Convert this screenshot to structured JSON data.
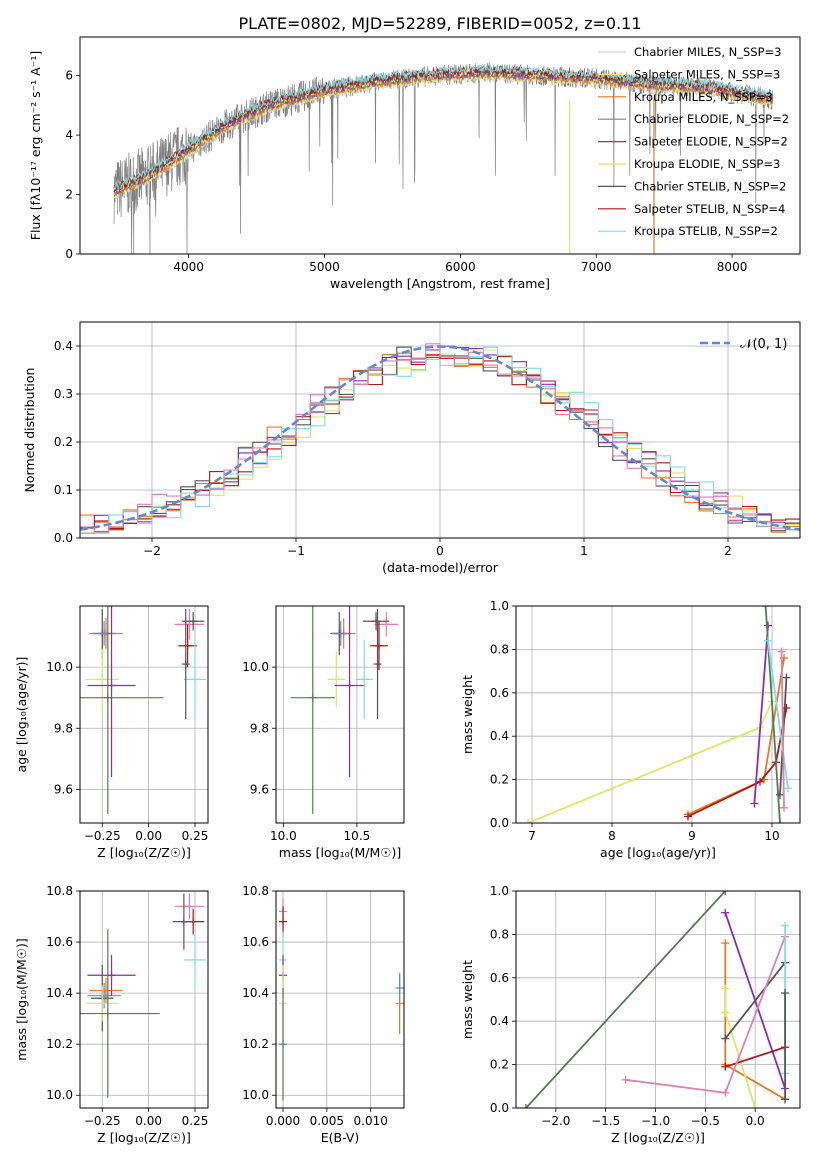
{
  "figure_title": "PLATE=0802, MJD=52289, FIBERID=0052, z=0.11",
  "chart_data": [
    {
      "id": "spectrum",
      "type": "line",
      "xlabel": "wavelength [Angstrom, rest frame]",
      "ylabel": "Flux [fλ10⁻¹⁷ erg cm⁻² s⁻¹ A⁻¹]",
      "xlim": [
        3200,
        8500
      ],
      "ylim": [
        0,
        7.3
      ],
      "xticks": [
        4000,
        5000,
        6000,
        7000,
        8000
      ],
      "yticks": [
        0,
        2,
        4,
        6
      ],
      "grid": false,
      "legend": "top-right",
      "observed_envelope": {
        "x": [
          3450,
          3700,
          4000,
          4300,
          4600,
          5000,
          5400,
          5800,
          6200,
          6600,
          7000,
          7400,
          7800,
          8300
        ],
        "y": [
          2.1,
          2.6,
          3.5,
          4.4,
          5.0,
          5.5,
          5.8,
          6.0,
          6.1,
          6.0,
          5.9,
          5.7,
          5.6,
          5.2
        ]
      },
      "series": [
        {
          "name": "Chabrier MILES, N_SSP=3",
          "color": "#d1d1d1"
        },
        {
          "name": "Salpeter MILES, N_SSP=3",
          "color": "#f1ee6a"
        },
        {
          "name": "Kroupa MILES, N_SSP=3",
          "color": "#e6791f"
        },
        {
          "name": "Chabrier ELODIE, N_SSP=2",
          "color": "#808080"
        },
        {
          "name": "Salpeter ELODIE, N_SSP=2",
          "color": "#8e2ab4"
        },
        {
          "name": "Kroupa ELODIE, N_SSP=3",
          "color": "#d9e865"
        },
        {
          "name": "Chabrier STELIB, N_SSP=2",
          "color": "#555555"
        },
        {
          "name": "Salpeter STELIB, N_SSP=4",
          "color": "#b01616"
        },
        {
          "name": "Kroupa STELIB, N_SSP=2",
          "color": "#7fdde3"
        }
      ]
    },
    {
      "id": "residuals",
      "type": "line",
      "xlabel": "(data-model)/error",
      "ylabel": "Normed distribution",
      "xlim": [
        -2.5,
        2.5
      ],
      "ylim": [
        0,
        0.45
      ],
      "xticks": [
        -2,
        -1,
        0,
        1,
        2
      ],
      "yticks": [
        0.0,
        0.1,
        0.2,
        0.3,
        0.4
      ],
      "grid": true,
      "legend": "top-right",
      "reference": {
        "name": "𝒩(0, 1)",
        "color": "#5b8ad8",
        "mu": 0,
        "sigma": 1
      },
      "hist_colors": [
        "#e6791f",
        "#8e2ab4",
        "#d9e865",
        "#555555",
        "#b01616",
        "#7fdde3",
        "#e07fb0"
      ]
    },
    {
      "id": "age-vs-Z",
      "type": "scatter",
      "xlabel": "Z [log₁₀(Z/Z☉)]",
      "ylabel": "age  [log₁₀(age/yr)]",
      "xlim": [
        -0.37,
        0.32
      ],
      "ylim": [
        9.49,
        10.2
      ],
      "xticks": [
        -0.25,
        0.0,
        0.25
      ],
      "xticklabels": [
        "−0.25",
        "0.00",
        "0.25"
      ],
      "yticks": [
        9.6,
        9.8,
        10.0
      ],
      "yticklabels": [
        "9.6",
        "9.8",
        "10.0"
      ],
      "grid": true,
      "points": [
        {
          "x": -0.23,
          "y": 10.11,
          "xerr": 0.09,
          "yerr": 0.05,
          "color": "#e6791f"
        },
        {
          "x": -0.25,
          "y": 10.11,
          "xerr": 0.05,
          "yerr": 0.08,
          "color": "#555555"
        },
        {
          "x": -0.24,
          "y": 10.11,
          "xerr": 0.06,
          "yerr": 0.04,
          "color": "#5b8ad8"
        },
        {
          "x": -0.25,
          "y": 9.96,
          "xerr": 0.09,
          "yerr": 0.1,
          "color": "#d9e865"
        },
        {
          "x": -0.2,
          "y": 9.94,
          "xerr": 0.13,
          "yerr": 0.3,
          "color": "#8e2ab4"
        },
        {
          "x": -0.22,
          "y": 9.9,
          "xerr": 0.3,
          "yerr": 0.38,
          "color": "#4f7f4f"
        },
        {
          "x": 0.22,
          "y": 10.14,
          "xerr": 0.08,
          "yerr": 0.05,
          "color": "#e07fb0"
        },
        {
          "x": 0.24,
          "y": 10.15,
          "xerr": 0.06,
          "yerr": 0.03,
          "color": "#555555"
        },
        {
          "x": 0.21,
          "y": 10.07,
          "xerr": 0.05,
          "yerr": 0.07,
          "color": "#b01616"
        },
        {
          "x": 0.25,
          "y": 9.96,
          "xerr": 0.06,
          "yerr": 0.13,
          "color": "#7fdde3"
        },
        {
          "x": 0.2,
          "y": 10.01,
          "xerr": 0.01,
          "yerr": 0.18,
          "color": "#555555"
        }
      ]
    },
    {
      "id": "age-vs-mass",
      "type": "scatter",
      "xlabel": "mass [log₁₀(M/M☉)]",
      "ylabel": "",
      "xlim": [
        9.95,
        10.82
      ],
      "ylim": [
        9.49,
        10.2
      ],
      "xticks": [
        10.0,
        10.5
      ],
      "xticklabels": [
        "10.0",
        "10.5"
      ],
      "yticks": [
        9.6,
        9.8,
        10.0
      ],
      "yticklabels": [
        "9.6",
        "9.8",
        "10.0"
      ],
      "grid": true,
      "points": [
        {
          "x": 10.41,
          "y": 10.11,
          "xerr": 0.08,
          "yerr": 0.05,
          "color": "#e6791f"
        },
        {
          "x": 10.38,
          "y": 10.11,
          "xerr": 0.06,
          "yerr": 0.07,
          "color": "#555555"
        },
        {
          "x": 10.39,
          "y": 10.11,
          "xerr": 0.06,
          "yerr": 0.04,
          "color": "#5b8ad8"
        },
        {
          "x": 10.36,
          "y": 9.96,
          "xerr": 0.06,
          "yerr": 0.09,
          "color": "#d9e865"
        },
        {
          "x": 10.45,
          "y": 9.94,
          "xerr": 0.1,
          "yerr": 0.3,
          "color": "#8e2ab4"
        },
        {
          "x": 10.2,
          "y": 9.9,
          "xerr": 0.15,
          "yerr": 0.38,
          "color": "#4f7f4f"
        },
        {
          "x": 10.7,
          "y": 10.14,
          "xerr": 0.08,
          "yerr": 0.04,
          "color": "#e07fb0"
        },
        {
          "x": 10.63,
          "y": 10.15,
          "xerr": 0.09,
          "yerr": 0.03,
          "color": "#555555"
        },
        {
          "x": 10.65,
          "y": 10.07,
          "xerr": 0.06,
          "yerr": 0.08,
          "color": "#b01616"
        },
        {
          "x": 10.55,
          "y": 9.96,
          "xerr": 0.06,
          "yerr": 0.13,
          "color": "#7fdde3"
        },
        {
          "x": 10.64,
          "y": 10.01,
          "xerr": 0.01,
          "yerr": 0.18,
          "color": "#555555"
        }
      ]
    },
    {
      "id": "weight-vs-age",
      "type": "line",
      "xlabel": "age  [log₁₀(age/yr)]",
      "ylabel": "mass weight",
      "xlim": [
        6.8,
        10.35
      ],
      "ylim": [
        0,
        1
      ],
      "xticks": [
        7,
        8,
        9,
        10
      ],
      "xticklabels": [
        "7",
        "8",
        "9",
        "10"
      ],
      "yticks": [
        0.0,
        0.2,
        0.4,
        0.6,
        0.8,
        1.0
      ],
      "yticklabels": [
        "0.0",
        "0.2",
        "0.4",
        "0.6",
        "0.8",
        "1.0"
      ],
      "grid": true,
      "series": [
        {
          "color": "#d9e865",
          "points": [
            [
              6.95,
              0.0
            ],
            [
              9.85,
              0.44
            ],
            [
              10.0,
              0.56
            ]
          ]
        },
        {
          "color": "#e6791f",
          "points": [
            [
              8.95,
              0.04
            ],
            [
              9.9,
              0.2
            ],
            [
              10.15,
              0.76
            ]
          ]
        },
        {
          "color": "#b01616",
          "points": [
            [
              8.95,
              0.03
            ],
            [
              9.85,
              0.19
            ],
            [
              10.05,
              0.28
            ],
            [
              10.18,
              0.53
            ]
          ]
        },
        {
          "color": "#8e2ab4",
          "points": [
            [
              9.78,
              0.09
            ],
            [
              9.95,
              0.91
            ]
          ]
        },
        {
          "color": "#4f7f4f",
          "points": [
            [
              9.92,
              1.0
            ],
            [
              10.1,
              0.0
            ]
          ]
        },
        {
          "color": "#555555",
          "points": [
            [
              10.1,
              0.13
            ],
            [
              10.18,
              0.67
            ]
          ]
        },
        {
          "color": "#7fdde3",
          "points": [
            [
              9.95,
              0.84
            ],
            [
              10.2,
              0.16
            ]
          ]
        },
        {
          "color": "#e07fb0",
          "points": [
            [
              10.12,
              0.79
            ],
            [
              10.15,
              0.07
            ]
          ]
        }
      ]
    },
    {
      "id": "mass-vs-Z",
      "type": "scatter",
      "xlabel": "Z [log₁₀(Z/Z☉)]",
      "ylabel": "mass [log₁₀(M/M☉)]",
      "xlim": [
        -0.37,
        0.32
      ],
      "ylim": [
        9.95,
        10.8
      ],
      "xticks": [
        -0.25,
        0.0,
        0.25
      ],
      "xticklabels": [
        "−0.25",
        "0.00",
        "0.25"
      ],
      "yticks": [
        10.0,
        10.2,
        10.4,
        10.6,
        10.8
      ],
      "yticklabels": [
        "10.0",
        "10.2",
        "10.4",
        "10.6",
        "10.8"
      ],
      "grid": true,
      "points": [
        {
          "x": -0.23,
          "y": 10.41,
          "xerr": 0.09,
          "yerr": 0.05,
          "color": "#e6791f"
        },
        {
          "x": -0.25,
          "y": 10.38,
          "xerr": 0.06,
          "yerr": 0.13,
          "color": "#555555"
        },
        {
          "x": -0.24,
          "y": 10.39,
          "xerr": 0.09,
          "yerr": 0.05,
          "color": "#5b8ad8"
        },
        {
          "x": -0.25,
          "y": 10.36,
          "xerr": 0.09,
          "yerr": 0.07,
          "color": "#d9e865"
        },
        {
          "x": -0.2,
          "y": 10.47,
          "xerr": 0.13,
          "yerr": 0.08,
          "color": "#8e2ab4"
        },
        {
          "x": -0.22,
          "y": 10.32,
          "xerr": 0.28,
          "yerr": 0.33,
          "color": "#4f7f4f"
        },
        {
          "x": 0.22,
          "y": 10.74,
          "xerr": 0.08,
          "yerr": 0.05,
          "color": "#e07fb0"
        },
        {
          "x": 0.24,
          "y": 10.68,
          "xerr": 0.06,
          "yerr": 0.05,
          "color": "#b01616"
        },
        {
          "x": 0.25,
          "y": 10.53,
          "xerr": 0.06,
          "yerr": 0.11,
          "color": "#7fdde3"
        },
        {
          "x": 0.19,
          "y": 10.68,
          "xerr": 0.06,
          "yerr": 0.11,
          "color": "#555555"
        }
      ]
    },
    {
      "id": "mass-vs-EBV",
      "type": "scatter",
      "xlabel": "E(B-V)",
      "ylabel": "",
      "xlim": [
        -0.0008,
        0.0138
      ],
      "ylim": [
        9.95,
        10.8
      ],
      "xticks": [
        0.0,
        0.005,
        0.01
      ],
      "xticklabels": [
        "0.000",
        "0.005",
        "0.010"
      ],
      "yticks": [
        10.0,
        10.2,
        10.4,
        10.6,
        10.8
      ],
      "yticklabels": [
        "10.0",
        "10.2",
        "10.4",
        "10.6",
        "10.8"
      ],
      "grid": true,
      "points": [
        {
          "x": 0.0,
          "y": 10.72,
          "xerr": 0,
          "yerr": 0.05,
          "color": "#e07fb0"
        },
        {
          "x": 0.0,
          "y": 10.68,
          "xerr": 0,
          "yerr": 0.06,
          "color": "#b01616"
        },
        {
          "x": 0.0,
          "y": 10.53,
          "xerr": 0,
          "yerr": 0.11,
          "color": "#7fdde3"
        },
        {
          "x": 0.0,
          "y": 10.47,
          "xerr": 0,
          "yerr": 0.08,
          "color": "#8e2ab4"
        },
        {
          "x": 0.0,
          "y": 10.36,
          "xerr": 0,
          "yerr": 0.15,
          "color": "#d9e865"
        },
        {
          "x": 0.0,
          "y": 10.2,
          "xerr": 0,
          "yerr": 0.22,
          "color": "#4f7f4f"
        },
        {
          "x": 0.0133,
          "y": 10.36,
          "xerr": 0,
          "yerr": 0.12,
          "color": "#e6791f"
        },
        {
          "x": 0.0133,
          "y": 10.42,
          "xerr": 0,
          "yerr": 0.05,
          "color": "#5b8ad8"
        }
      ]
    },
    {
      "id": "weight-vs-Z",
      "type": "line",
      "xlabel": "Z [log₁₀(Z/Z☉)]",
      "ylabel": "mass weight",
      "xlim": [
        -2.4,
        0.45
      ],
      "ylim": [
        0,
        1
      ],
      "xticks": [
        -2.0,
        -1.5,
        -1.0,
        -0.5,
        0.0
      ],
      "xticklabels": [
        "−2.0",
        "−1.5",
        "−1.0",
        "−0.5",
        "0.0"
      ],
      "yticks": [
        0.0,
        0.2,
        0.4,
        0.6,
        0.8,
        1.0
      ],
      "yticklabels": [
        "0.0",
        "0.2",
        "0.4",
        "0.6",
        "0.8",
        "1.0"
      ],
      "grid": true,
      "series": [
        {
          "color": "#4f7f4f",
          "points": [
            [
              -2.3,
              0.0
            ],
            [
              -0.3,
              1.0
            ]
          ]
        },
        {
          "color": "#8e2ab4",
          "points": [
            [
              -0.3,
              0.9
            ],
            [
              0.3,
              0.09
            ]
          ]
        },
        {
          "color": "#e6791f",
          "points": [
            [
              -0.3,
              0.76
            ],
            [
              -0.3,
              0.2
            ],
            [
              0.3,
              0.04
            ]
          ]
        },
        {
          "color": "#d9e865",
          "points": [
            [
              -0.3,
              0.55
            ],
            [
              -0.3,
              0.44
            ],
            [
              0.0,
              0.0
            ]
          ]
        },
        {
          "color": "#555555",
          "points": [
            [
              -0.3,
              0.32
            ],
            [
              0.3,
              0.67
            ]
          ]
        },
        {
          "color": "#b01616",
          "points": [
            [
              -0.3,
              0.19
            ],
            [
              0.3,
              0.28
            ]
          ]
        },
        {
          "color": "#e07fb0",
          "points": [
            [
              -1.3,
              0.13
            ],
            [
              -0.3,
              0.07
            ],
            [
              0.3,
              0.79
            ]
          ]
        },
        {
          "color": "#7fdde3",
          "points": [
            [
              0.3,
              0.84
            ],
            [
              0.3,
              0.16
            ]
          ]
        },
        {
          "color": "#555555",
          "points": [
            [
              0.3,
              0.53
            ],
            [
              0.3,
              0.04
            ]
          ]
        }
      ]
    }
  ]
}
